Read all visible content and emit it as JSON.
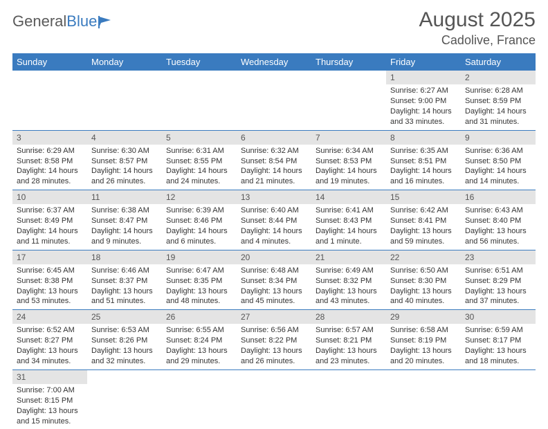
{
  "logo": {
    "text1": "General",
    "text2": "Blue"
  },
  "header": {
    "month": "August 2025",
    "location": "Cadolive, France"
  },
  "colors": {
    "accent": "#3a7bbf",
    "day_bg": "#e4e4e4",
    "text": "#555"
  },
  "weekdays": [
    "Sunday",
    "Monday",
    "Tuesday",
    "Wednesday",
    "Thursday",
    "Friday",
    "Saturday"
  ],
  "calendar": {
    "first_weekday_index": 5,
    "days_in_month": 31
  },
  "days": {
    "1": {
      "sunrise": "6:27 AM",
      "sunset": "9:00 PM",
      "daylight": "14 hours and 33 minutes."
    },
    "2": {
      "sunrise": "6:28 AM",
      "sunset": "8:59 PM",
      "daylight": "14 hours and 31 minutes."
    },
    "3": {
      "sunrise": "6:29 AM",
      "sunset": "8:58 PM",
      "daylight": "14 hours and 28 minutes."
    },
    "4": {
      "sunrise": "6:30 AM",
      "sunset": "8:57 PM",
      "daylight": "14 hours and 26 minutes."
    },
    "5": {
      "sunrise": "6:31 AM",
      "sunset": "8:55 PM",
      "daylight": "14 hours and 24 minutes."
    },
    "6": {
      "sunrise": "6:32 AM",
      "sunset": "8:54 PM",
      "daylight": "14 hours and 21 minutes."
    },
    "7": {
      "sunrise": "6:34 AM",
      "sunset": "8:53 PM",
      "daylight": "14 hours and 19 minutes."
    },
    "8": {
      "sunrise": "6:35 AM",
      "sunset": "8:51 PM",
      "daylight": "14 hours and 16 minutes."
    },
    "9": {
      "sunrise": "6:36 AM",
      "sunset": "8:50 PM",
      "daylight": "14 hours and 14 minutes."
    },
    "10": {
      "sunrise": "6:37 AM",
      "sunset": "8:49 PM",
      "daylight": "14 hours and 11 minutes."
    },
    "11": {
      "sunrise": "6:38 AM",
      "sunset": "8:47 PM",
      "daylight": "14 hours and 9 minutes."
    },
    "12": {
      "sunrise": "6:39 AM",
      "sunset": "8:46 PM",
      "daylight": "14 hours and 6 minutes."
    },
    "13": {
      "sunrise": "6:40 AM",
      "sunset": "8:44 PM",
      "daylight": "14 hours and 4 minutes."
    },
    "14": {
      "sunrise": "6:41 AM",
      "sunset": "8:43 PM",
      "daylight": "14 hours and 1 minute."
    },
    "15": {
      "sunrise": "6:42 AM",
      "sunset": "8:41 PM",
      "daylight": "13 hours and 59 minutes."
    },
    "16": {
      "sunrise": "6:43 AM",
      "sunset": "8:40 PM",
      "daylight": "13 hours and 56 minutes."
    },
    "17": {
      "sunrise": "6:45 AM",
      "sunset": "8:38 PM",
      "daylight": "13 hours and 53 minutes."
    },
    "18": {
      "sunrise": "6:46 AM",
      "sunset": "8:37 PM",
      "daylight": "13 hours and 51 minutes."
    },
    "19": {
      "sunrise": "6:47 AM",
      "sunset": "8:35 PM",
      "daylight": "13 hours and 48 minutes."
    },
    "20": {
      "sunrise": "6:48 AM",
      "sunset": "8:34 PM",
      "daylight": "13 hours and 45 minutes."
    },
    "21": {
      "sunrise": "6:49 AM",
      "sunset": "8:32 PM",
      "daylight": "13 hours and 43 minutes."
    },
    "22": {
      "sunrise": "6:50 AM",
      "sunset": "8:30 PM",
      "daylight": "13 hours and 40 minutes."
    },
    "23": {
      "sunrise": "6:51 AM",
      "sunset": "8:29 PM",
      "daylight": "13 hours and 37 minutes."
    },
    "24": {
      "sunrise": "6:52 AM",
      "sunset": "8:27 PM",
      "daylight": "13 hours and 34 minutes."
    },
    "25": {
      "sunrise": "6:53 AM",
      "sunset": "8:26 PM",
      "daylight": "13 hours and 32 minutes."
    },
    "26": {
      "sunrise": "6:55 AM",
      "sunset": "8:24 PM",
      "daylight": "13 hours and 29 minutes."
    },
    "27": {
      "sunrise": "6:56 AM",
      "sunset": "8:22 PM",
      "daylight": "13 hours and 26 minutes."
    },
    "28": {
      "sunrise": "6:57 AM",
      "sunset": "8:21 PM",
      "daylight": "13 hours and 23 minutes."
    },
    "29": {
      "sunrise": "6:58 AM",
      "sunset": "8:19 PM",
      "daylight": "13 hours and 20 minutes."
    },
    "30": {
      "sunrise": "6:59 AM",
      "sunset": "8:17 PM",
      "daylight": "13 hours and 18 minutes."
    },
    "31": {
      "sunrise": "7:00 AM",
      "sunset": "8:15 PM",
      "daylight": "13 hours and 15 minutes."
    }
  },
  "labels": {
    "sunrise": "Sunrise:",
    "sunset": "Sunset:",
    "daylight": "Daylight:"
  }
}
